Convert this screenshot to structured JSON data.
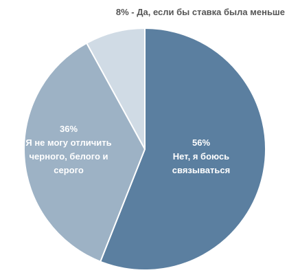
{
  "chart_data": {
    "type": "pie",
    "categories": [
      "Нет, я боюсь связываться",
      "Я не могу отличить черного, белого и серого",
      "Да, если бы ставка была меньше"
    ],
    "values": [
      56,
      36,
      8
    ],
    "value_labels": [
      "56%",
      "36%",
      "8%"
    ],
    "label_separator": " - ",
    "colors": [
      "#5b7fa0",
      "#9db2c5",
      "#d0dbe5"
    ]
  }
}
